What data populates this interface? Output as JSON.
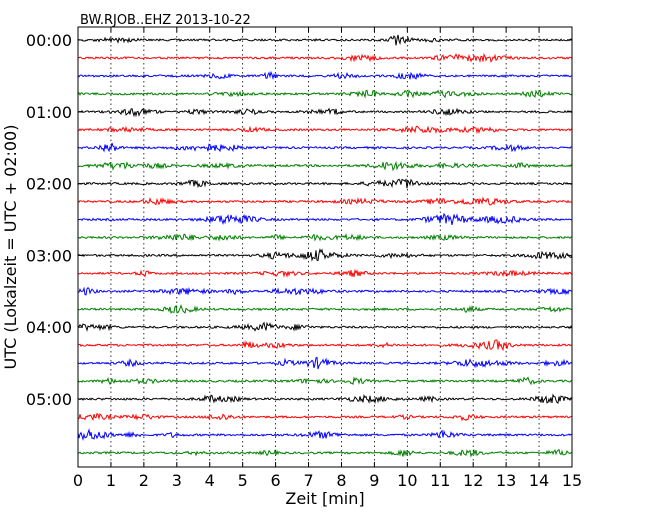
{
  "chart_data": {
    "type": "line",
    "title": "BW.RJOB..EHZ 2013-10-22",
    "xlabel": "Zeit  [min]",
    "ylabel": "UTC (Lokalzeit = UTC + 02:00)",
    "xlim": [
      0,
      15
    ],
    "x_ticks": [
      "0",
      "1",
      "2",
      "3",
      "4",
      "5",
      "6",
      "7",
      "8",
      "9",
      "10",
      "11",
      "12",
      "13",
      "14",
      "15"
    ],
    "y_ticks": [
      "00:00",
      "01:00",
      "02:00",
      "03:00",
      "04:00",
      "05:00"
    ],
    "grid": "vertical dotted",
    "traces_per_hour": 4,
    "minutes_per_trace": 15,
    "trace_colors": [
      "#000000",
      "#ff0000",
      "#0000ff",
      "#008000"
    ],
    "series": [
      {
        "start": "00:00",
        "color": "#000000"
      },
      {
        "start": "00:15",
        "color": "#ff0000"
      },
      {
        "start": "00:30",
        "color": "#0000ff"
      },
      {
        "start": "00:45",
        "color": "#008000"
      },
      {
        "start": "01:00",
        "color": "#000000"
      },
      {
        "start": "01:15",
        "color": "#ff0000"
      },
      {
        "start": "01:30",
        "color": "#0000ff"
      },
      {
        "start": "01:45",
        "color": "#008000"
      },
      {
        "start": "02:00",
        "color": "#000000"
      },
      {
        "start": "02:15",
        "color": "#ff0000"
      },
      {
        "start": "02:30",
        "color": "#0000ff"
      },
      {
        "start": "02:45",
        "color": "#008000"
      },
      {
        "start": "03:00",
        "color": "#000000"
      },
      {
        "start": "03:15",
        "color": "#ff0000"
      },
      {
        "start": "03:30",
        "color": "#0000ff"
      },
      {
        "start": "03:45",
        "color": "#008000"
      },
      {
        "start": "04:00",
        "color": "#000000"
      },
      {
        "start": "04:15",
        "color": "#ff0000"
      },
      {
        "start": "04:30",
        "color": "#0000ff"
      },
      {
        "start": "04:45",
        "color": "#008000"
      },
      {
        "start": "05:00",
        "color": "#000000"
      },
      {
        "start": "05:15",
        "color": "#ff0000"
      },
      {
        "start": "05:30",
        "color": "#0000ff"
      },
      {
        "start": "05:45",
        "color": "#008000"
      }
    ]
  }
}
